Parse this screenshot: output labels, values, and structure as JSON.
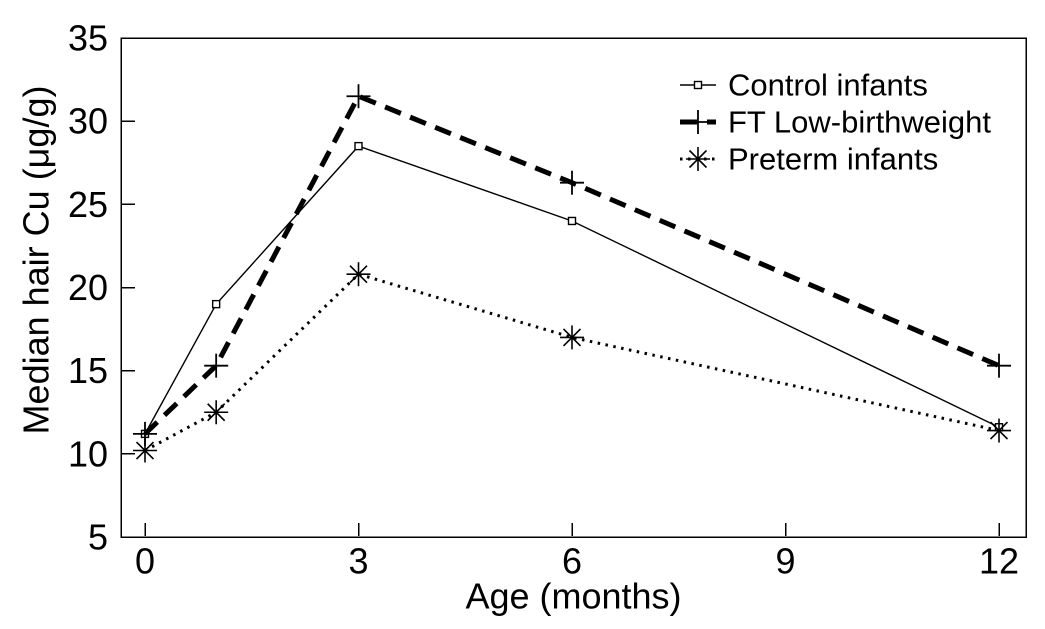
{
  "chart_data": {
    "type": "line",
    "title": "",
    "xlabel": "Age (months)",
    "ylabel": "Median hair Cu (μg/g)",
    "x": [
      0,
      1,
      3,
      6,
      12
    ],
    "xticks": [
      0,
      3,
      6,
      9,
      12
    ],
    "yticks": [
      5,
      10,
      15,
      20,
      25,
      30,
      35
    ],
    "xlim": [
      0,
      12
    ],
    "ylim": [
      5,
      35
    ],
    "grid": false,
    "legend_position": "top-right-inside",
    "legend_border": false,
    "series": [
      {
        "name": "Control infants",
        "marker": "square",
        "line": "solid-thin",
        "values": [
          11.2,
          19.0,
          28.5,
          24.0,
          11.6
        ]
      },
      {
        "name": "FT Low-birthweight",
        "marker": "plus",
        "line": "dashed-thick",
        "values": [
          11.2,
          15.3,
          31.5,
          26.3,
          15.3
        ]
      },
      {
        "name": "Preterm infants",
        "marker": "asterisk",
        "line": "dotted",
        "values": [
          10.2,
          12.5,
          20.8,
          17.0,
          11.4
        ]
      }
    ],
    "colors": {
      "line": "#000000",
      "text": "#000000",
      "background": "#ffffff"
    }
  }
}
